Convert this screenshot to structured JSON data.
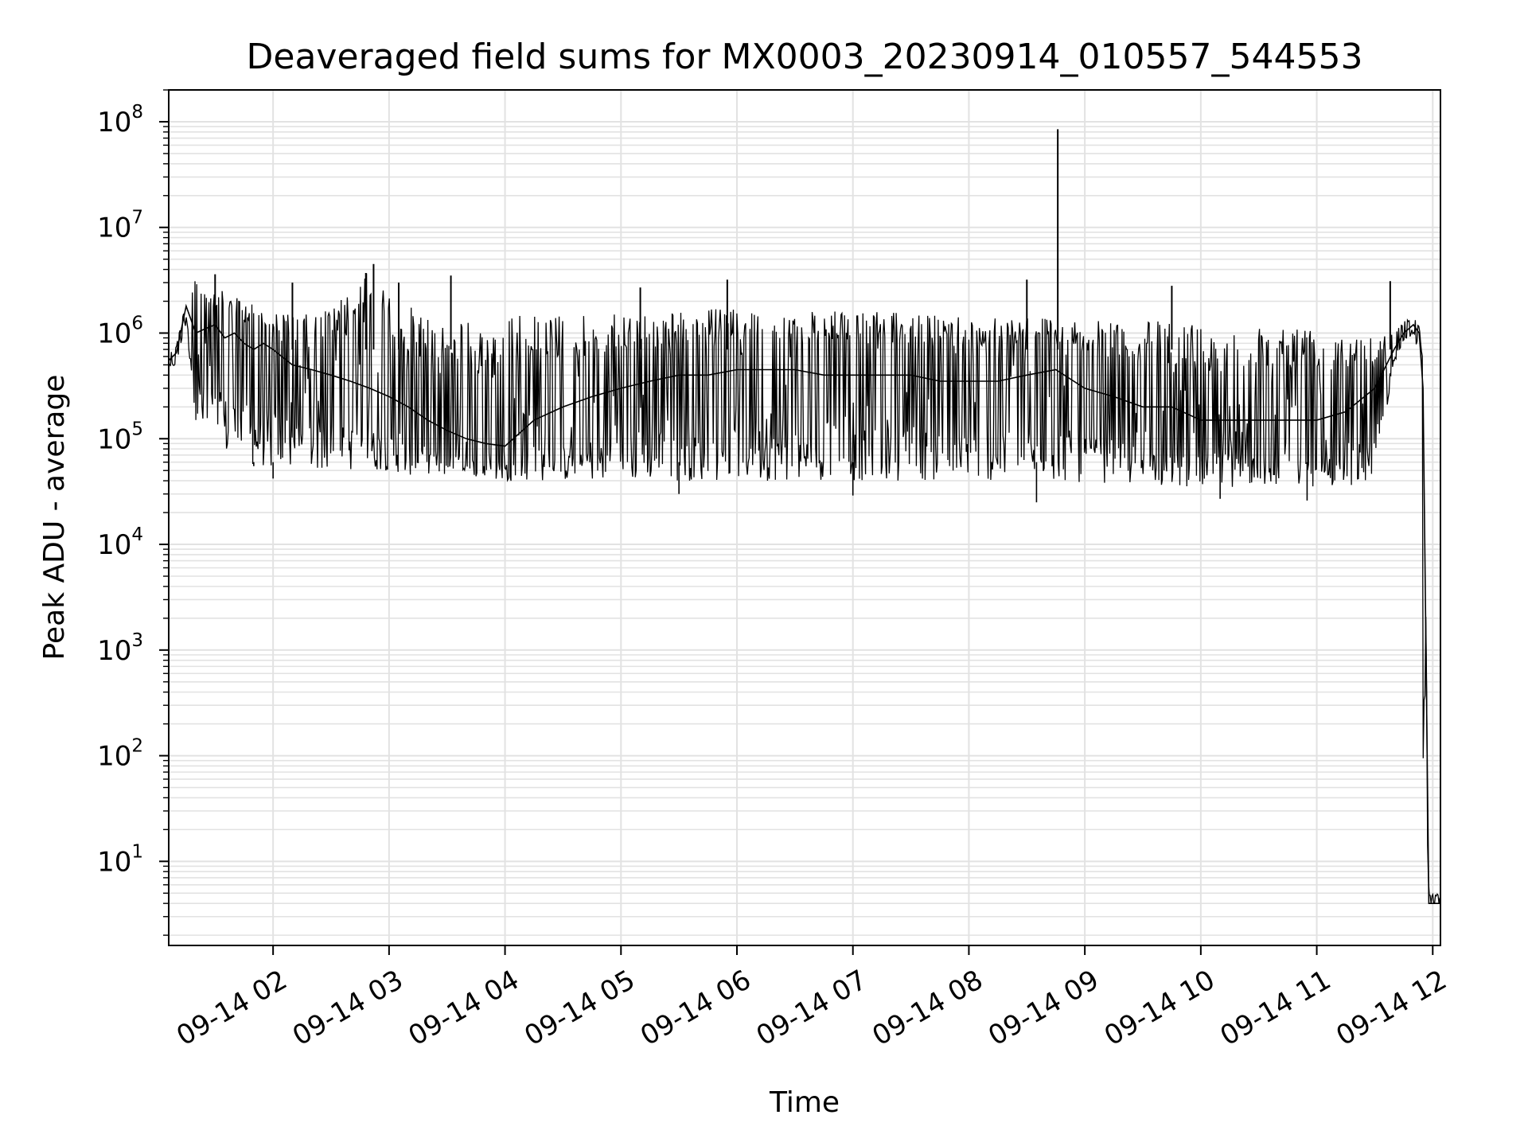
{
  "chart_data": {
    "type": "line",
    "title": "Deaveraged field sums for MX0003_20230914_010557_544553",
    "xlabel": "Time",
    "ylabel": "Peak ADU - average",
    "yscale": "log",
    "ylim": [
      1.6,
      200000000
    ],
    "xlim": [
      "2023-09-14 01:06",
      "2023-09-14 12:04"
    ],
    "grid": true,
    "line_color": "#000000",
    "x_ticks": [
      "09-14 02",
      "09-14 03",
      "09-14 04",
      "09-14 05",
      "09-14 06",
      "09-14 07",
      "09-14 08",
      "09-14 09",
      "09-14 10",
      "09-14 11",
      "09-14 12"
    ],
    "x_tick_times": [
      "2023-09-14 02:00",
      "2023-09-14 03:00",
      "2023-09-14 04:00",
      "2023-09-14 05:00",
      "2023-09-14 06:00",
      "2023-09-14 07:00",
      "2023-09-14 08:00",
      "2023-09-14 09:00",
      "2023-09-14 10:00",
      "2023-09-14 11:00",
      "2023-09-14 12:00"
    ],
    "y_ticks": [
      {
        "base": "10",
        "exp": "1",
        "value": 10
      },
      {
        "base": "10",
        "exp": "2",
        "value": 100
      },
      {
        "base": "10",
        "exp": "3",
        "value": 1000
      },
      {
        "base": "10",
        "exp": "4",
        "value": 10000
      },
      {
        "base": "10",
        "exp": "5",
        "value": 100000
      },
      {
        "base": "10",
        "exp": "6",
        "value": 1000000
      },
      {
        "base": "10",
        "exp": "7",
        "value": 10000000
      },
      {
        "base": "10",
        "exp": "8",
        "value": 100000000
      }
    ],
    "series": [
      {
        "x": [
          "2023-09-14 01:06",
          "2023-09-14 01:10",
          "2023-09-14 01:15",
          "2023-09-14 01:20",
          "2023-09-14 01:25",
          "2023-09-14 01:30",
          "2023-09-14 01:35",
          "2023-09-14 01:40",
          "2023-09-14 01:45",
          "2023-09-14 01:50",
          "2023-09-14 01:55",
          "2023-09-14 02:00",
          "2023-09-14 02:10",
          "2023-09-14 02:20",
          "2023-09-14 02:30",
          "2023-09-14 02:40",
          "2023-09-14 02:50",
          "2023-09-14 03:00",
          "2023-09-14 03:10",
          "2023-09-14 03:20",
          "2023-09-14 03:30",
          "2023-09-14 03:40",
          "2023-09-14 03:50",
          "2023-09-14 04:00",
          "2023-09-14 04:15",
          "2023-09-14 04:30",
          "2023-09-14 04:45",
          "2023-09-14 05:00",
          "2023-09-14 05:15",
          "2023-09-14 05:30",
          "2023-09-14 05:45",
          "2023-09-14 06:00",
          "2023-09-14 06:15",
          "2023-09-14 06:30",
          "2023-09-14 06:45",
          "2023-09-14 07:00",
          "2023-09-14 07:15",
          "2023-09-14 07:30",
          "2023-09-14 07:45",
          "2023-09-14 08:00",
          "2023-09-14 08:15",
          "2023-09-14 08:30",
          "2023-09-14 08:45",
          "2023-09-14 09:00",
          "2023-09-14 09:15",
          "2023-09-14 09:30",
          "2023-09-14 09:45",
          "2023-09-14 10:00",
          "2023-09-14 10:15",
          "2023-09-14 10:30",
          "2023-09-14 10:45",
          "2023-09-14 11:00",
          "2023-09-14 11:15",
          "2023-09-14 11:30",
          "2023-09-14 11:40",
          "2023-09-14 11:45",
          "2023-09-14 11:50",
          "2023-09-14 11:53",
          "2023-09-14 11:55",
          "2023-09-14 11:58",
          "2023-09-14 12:04"
        ],
        "y": [
          550000,
          650000,
          1800000,
          1000000,
          1100000,
          1200000,
          900000,
          1000000,
          800000,
          700000,
          800000,
          700000,
          500000,
          450000,
          400000,
          350000,
          300000,
          250000,
          200000,
          150000,
          120000,
          100000,
          90000,
          85000,
          150000,
          200000,
          250000,
          300000,
          350000,
          400000,
          400000,
          450000,
          450000,
          450000,
          400000,
          400000,
          400000,
          400000,
          350000,
          350000,
          350000,
          400000,
          450000,
          300000,
          250000,
          200000,
          200000,
          150000,
          150000,
          150000,
          150000,
          150000,
          180000,
          300000,
          700000,
          1000000,
          1200000,
          1000000,
          300000,
          4,
          4
        ],
        "envelope_max": [
          700000,
          800000,
          2000000,
          3500000,
          3000000,
          2500000,
          2500000,
          2200000,
          2000000,
          2000000,
          1800000,
          1600000,
          1500000,
          1500000,
          1800000,
          2500000,
          4000000,
          2500000,
          1800000,
          1500000,
          1500000,
          1300000,
          1200000,
          1500000,
          1500000,
          1500000,
          1500000,
          1500000,
          1600000,
          1600000,
          1700000,
          1700000,
          1600000,
          1600000,
          1600000,
          1600000,
          1600000,
          1500000,
          1500000,
          1500000,
          1500000,
          1500000,
          1400000,
          1300000,
          1300000,
          1300000,
          1300000,
          1200000,
          1200000,
          1200000,
          1200000,
          1200000,
          1100000,
          1000000,
          1200000,
          1300000,
          1400000,
          1200000,
          600000,
          5,
          5
        ],
        "envelope_min": [
          450000,
          500000,
          1200000,
          150000,
          100000,
          80000,
          70000,
          60000,
          60000,
          55000,
          50000,
          50000,
          50000,
          50000,
          50000,
          50000,
          50000,
          50000,
          45000,
          45000,
          45000,
          45000,
          42000,
          40000,
          40000,
          40000,
          40000,
          40000,
          40000,
          40000,
          40000,
          40000,
          40000,
          40000,
          40000,
          40000,
          40000,
          40000,
          40000,
          40000,
          40000,
          40000,
          40000,
          38000,
          38000,
          36000,
          35000,
          35000,
          35000,
          35000,
          35000,
          35000,
          35000,
          40000,
          500000,
          800000,
          1000000,
          600000,
          100,
          4,
          4
        ]
      }
    ],
    "spikes": [
      {
        "x": "2023-09-14 08:46",
        "y": 85000000
      },
      {
        "x": "2023-09-14 02:52",
        "y": 4500000
      },
      {
        "x": "2023-09-14 02:48",
        "y": 3700000
      },
      {
        "x": "2023-09-14 03:32",
        "y": 3500000
      },
      {
        "x": "2023-09-14 01:30",
        "y": 3600000
      },
      {
        "x": "2023-09-14 09:45",
        "y": 2800000
      },
      {
        "x": "2023-09-14 11:38",
        "y": 3100000
      },
      {
        "x": "2023-09-14 08:30",
        "y": 3200000
      },
      {
        "x": "2023-09-14 03:05",
        "y": 3000000
      },
      {
        "x": "2023-09-14 05:10",
        "y": 2700000
      },
      {
        "x": "2023-09-14 05:55",
        "y": 3200000
      },
      {
        "x": "2023-09-14 02:10",
        "y": 3000000
      }
    ],
    "dips": [
      {
        "x": "2023-09-14 08:35",
        "y": 25000
      },
      {
        "x": "2023-09-14 05:30",
        "y": 30000
      },
      {
        "x": "2023-09-14 07:00",
        "y": 29000
      },
      {
        "x": "2023-09-14 10:55",
        "y": 26000
      },
      {
        "x": "2023-09-14 10:10",
        "y": 27000
      },
      {
        "x": "2023-09-14 02:00",
        "y": 42000
      },
      {
        "x": "2023-09-14 01:50",
        "y": 55000
      }
    ]
  }
}
